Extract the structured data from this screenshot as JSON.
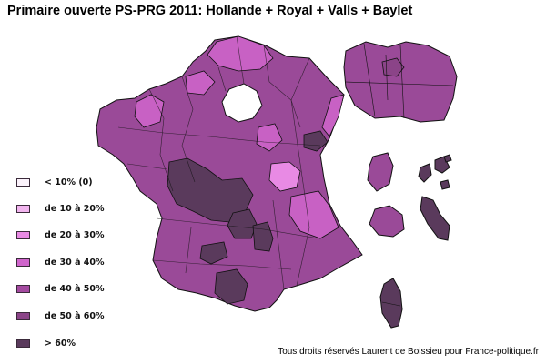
{
  "title": "Primaire ouverte PS-PRG 2011: Hollande + Royal + Valls + Baylet",
  "legend": {
    "items": [
      {
        "label": "< 10% (0)",
        "color": "#fbf2fb"
      },
      {
        "label": "de 10 à 20%",
        "color": "#f2b5ef"
      },
      {
        "label": "de 20 à 30%",
        "color": "#e88ae4"
      },
      {
        "label": "de 30 à 40%",
        "color": "#d065cc"
      },
      {
        "label": "de 40 à 50%",
        "color": "#a44aa0"
      },
      {
        "label": "de 50 à 60%",
        "color": "#8b4488"
      },
      {
        "label": "> 60%",
        "color": "#5a3a5c"
      }
    ]
  },
  "credit": "Tous droits réservés Laurent de Boissieu pour France-politique.fr"
}
